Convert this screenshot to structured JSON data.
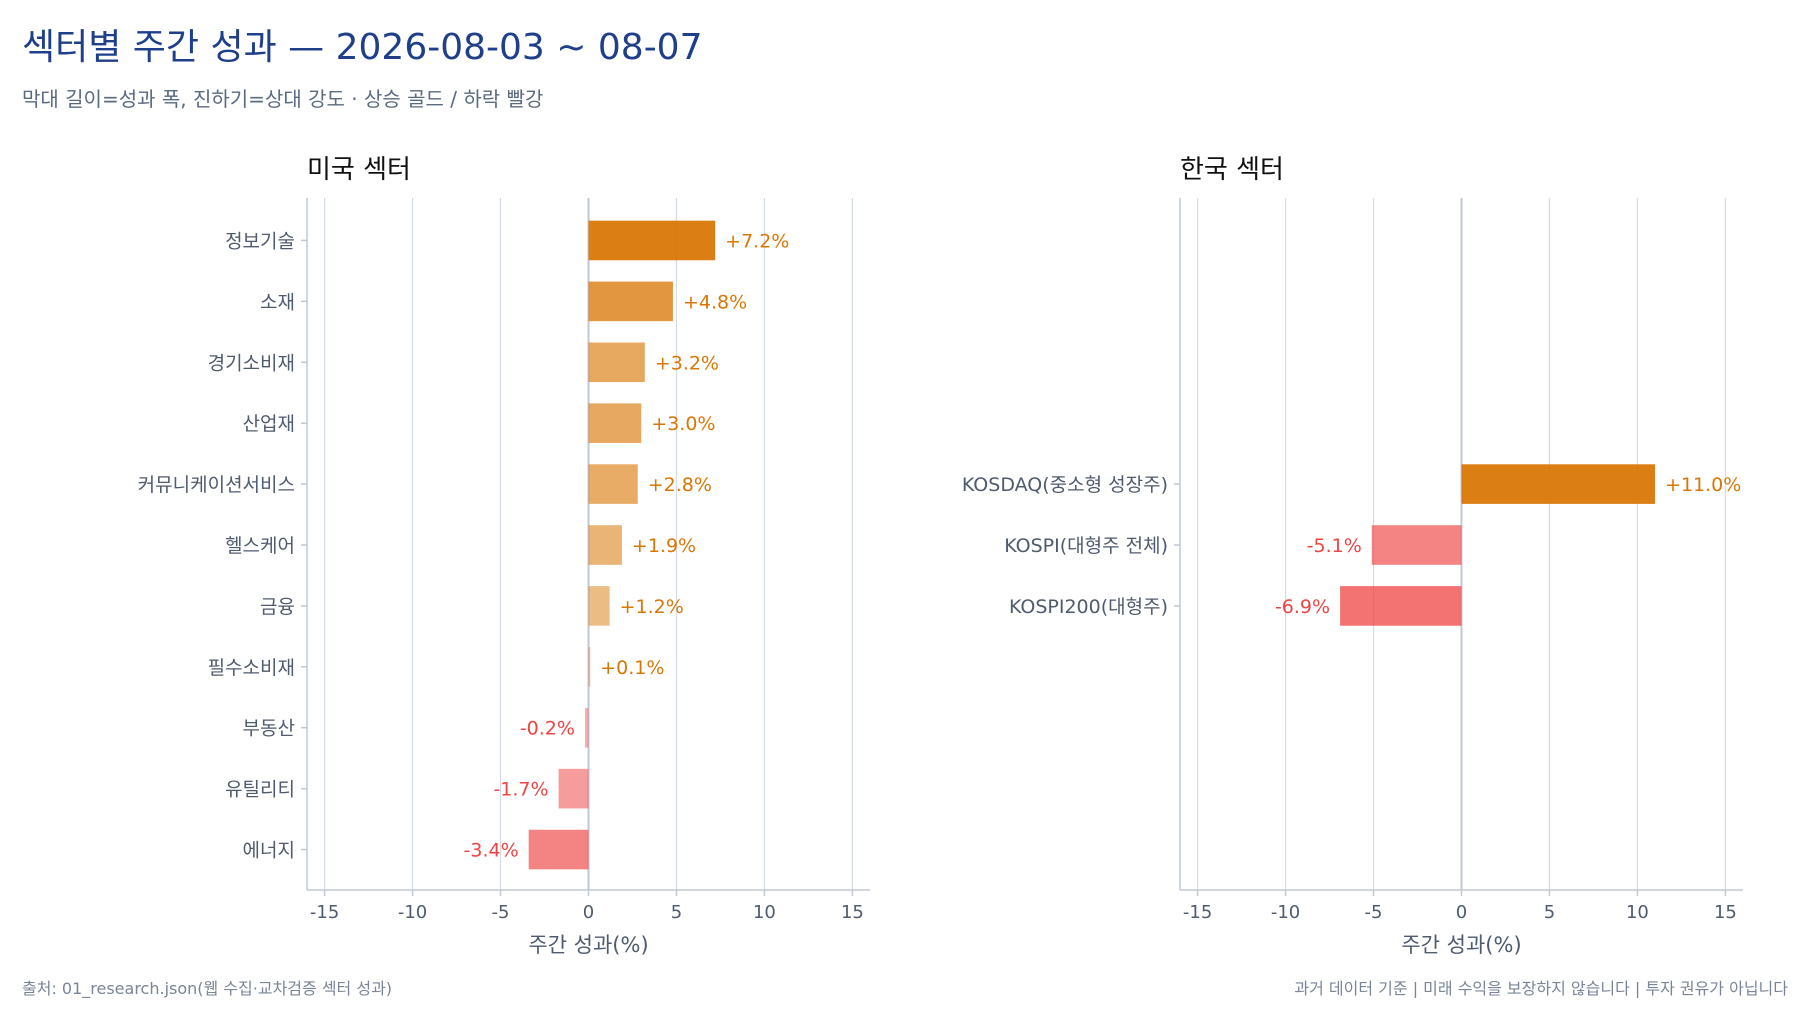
{
  "header": {
    "title": "섹터별 주간 성과 — 2026-08-03 ~ 08-07",
    "subtitle": "막대 길이=성과 폭, 진하기=상대 강도 · 상승 골드 / 하락 빨강"
  },
  "footer": {
    "source": "출처: 01_research.json(웹 수집·교차검증 섹터 성과)",
    "disclaimer": "과거 데이터 기준 | 미래 수익을 보장하지 않습니다 | 투자 권유가 아닙니다"
  },
  "colors": {
    "up": "#d97706",
    "down": "#ef4444",
    "grid": "#d5dbe5",
    "axis": "#c0c8d6"
  },
  "chart_data": [
    {
      "type": "bar",
      "orientation": "horizontal",
      "title": "미국 섹터",
      "xlabel": "주간 성과(%)",
      "xlim": [
        -16,
        16
      ],
      "xticks": [
        -15,
        -10,
        -5,
        0,
        5,
        10,
        15
      ],
      "grid": true,
      "categories": [
        "정보기술",
        "소재",
        "경기소비재",
        "산업재",
        "커뮤니케이션서비스",
        "헬스케어",
        "금융",
        "필수소비재",
        "부동산",
        "유틸리티",
        "에너지"
      ],
      "values": [
        7.2,
        4.8,
        3.2,
        3.0,
        2.8,
        1.9,
        1.2,
        0.1,
        -0.2,
        -1.7,
        -3.4
      ],
      "labels": [
        "+7.2%",
        "+4.8%",
        "+3.2%",
        "+3.0%",
        "+2.8%",
        "+1.9%",
        "+1.2%",
        "+0.1%",
        "-0.2%",
        "-1.7%",
        "-3.4%"
      ]
    },
    {
      "type": "bar",
      "orientation": "horizontal",
      "title": "한국 섹터",
      "xlabel": "주간 성과(%)",
      "xlim": [
        -16,
        16
      ],
      "xticks": [
        -15,
        -10,
        -5,
        0,
        5,
        10,
        15
      ],
      "grid": true,
      "categories": [
        "KOSDAQ(중소형 성장주)",
        "KOSPI(대형주 전체)",
        "KOSPI200(대형주)"
      ],
      "values": [
        11.0,
        -5.1,
        -6.9
      ],
      "labels": [
        "+11.0%",
        "-5.1%",
        "-6.9%"
      ]
    }
  ]
}
